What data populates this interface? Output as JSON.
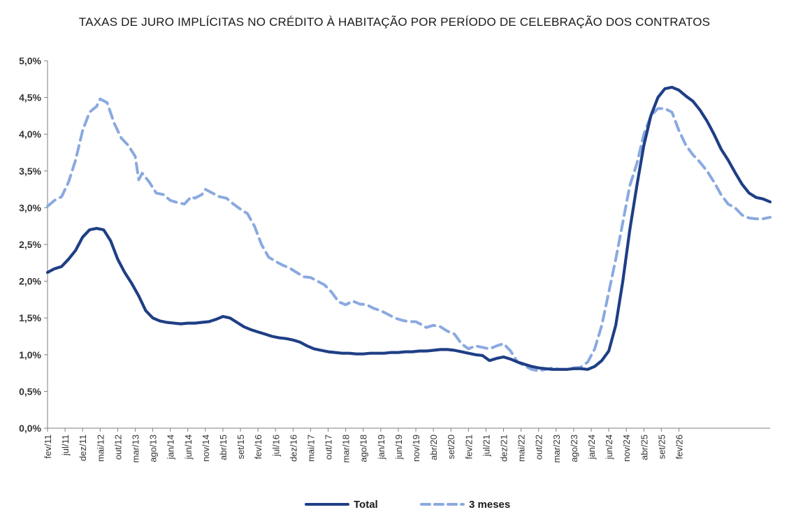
{
  "chart_data": {
    "type": "line",
    "title": "TAXAS DE JURO IMPLÍCITAS NO CRÉDITO À HABITAÇÃO POR PERÍODO DE CELEBRAÇÃO DOS CONTRATOS",
    "xlabel": "",
    "ylabel": "",
    "ylim": [
      0,
      5.0
    ],
    "yticks": [
      0,
      0.5,
      1.0,
      1.5,
      2.0,
      2.5,
      3.0,
      3.5,
      4.0,
      4.5,
      5.0
    ],
    "ytick_labels": [
      "0,0%",
      "0,5%",
      "1,0%",
      "1,5%",
      "2,0%",
      "2,5%",
      "3,0%",
      "3,5%",
      "4,0%",
      "4,5%",
      "5,0%"
    ],
    "x_tick_labels": [
      "fev/11",
      "jul/11",
      "dez/11",
      "mai/12",
      "out/12",
      "mar/13",
      "ago/13",
      "jan/14",
      "jun/14",
      "nov/14",
      "abr/15",
      "set/15",
      "fev/16",
      "jul/16",
      "dez/16",
      "mai/17",
      "out/17",
      "mar/18",
      "ago/18",
      "jan/19",
      "jun/19",
      "nov/19",
      "abr/20",
      "set/20",
      "fev/21",
      "jul/21",
      "dez/21",
      "mai/22",
      "out/22",
      "mar/23",
      "ago/23",
      "jan/24",
      "jun/24",
      "nov/24",
      "abr/25",
      "set/25",
      "fev/26"
    ],
    "x_tick_step_months": 5,
    "legend_position": "bottom-center",
    "series": [
      {
        "name": "Total",
        "color": "#1f3f85",
        "style": "solid",
        "points": [
          [
            0,
            2.12
          ],
          [
            2,
            2.17
          ],
          [
            4,
            2.2
          ],
          [
            6,
            2.3
          ],
          [
            8,
            2.42
          ],
          [
            10,
            2.6
          ],
          [
            12,
            2.7
          ],
          [
            14,
            2.72
          ],
          [
            16,
            2.7
          ],
          [
            18,
            2.55
          ],
          [
            20,
            2.3
          ],
          [
            22,
            2.12
          ],
          [
            24,
            1.97
          ],
          [
            26,
            1.8
          ],
          [
            28,
            1.6
          ],
          [
            30,
            1.5
          ],
          [
            32,
            1.46
          ],
          [
            34,
            1.44
          ],
          [
            36,
            1.43
          ],
          [
            38,
            1.42
          ],
          [
            40,
            1.43
          ],
          [
            42,
            1.43
          ],
          [
            44,
            1.44
          ],
          [
            46,
            1.45
          ],
          [
            48,
            1.48
          ],
          [
            50,
            1.52
          ],
          [
            52,
            1.5
          ],
          [
            54,
            1.44
          ],
          [
            56,
            1.38
          ],
          [
            58,
            1.34
          ],
          [
            60,
            1.31
          ],
          [
            62,
            1.28
          ],
          [
            64,
            1.25
          ],
          [
            66,
            1.23
          ],
          [
            68,
            1.22
          ],
          [
            70,
            1.2
          ],
          [
            72,
            1.17
          ],
          [
            74,
            1.12
          ],
          [
            76,
            1.08
          ],
          [
            78,
            1.06
          ],
          [
            80,
            1.04
          ],
          [
            82,
            1.03
          ],
          [
            84,
            1.02
          ],
          [
            86,
            1.02
          ],
          [
            88,
            1.01
          ],
          [
            90,
            1.01
          ],
          [
            92,
            1.02
          ],
          [
            94,
            1.02
          ],
          [
            96,
            1.02
          ],
          [
            98,
            1.03
          ],
          [
            100,
            1.03
          ],
          [
            102,
            1.04
          ],
          [
            104,
            1.04
          ],
          [
            106,
            1.05
          ],
          [
            108,
            1.05
          ],
          [
            110,
            1.06
          ],
          [
            112,
            1.07
          ],
          [
            114,
            1.07
          ],
          [
            116,
            1.06
          ],
          [
            118,
            1.04
          ],
          [
            120,
            1.02
          ],
          [
            122,
            1.0
          ],
          [
            124,
            0.99
          ],
          [
            126,
            0.92
          ],
          [
            128,
            0.95
          ],
          [
            130,
            0.97
          ],
          [
            132,
            0.94
          ],
          [
            134,
            0.9
          ],
          [
            136,
            0.87
          ],
          [
            138,
            0.84
          ],
          [
            140,
            0.82
          ],
          [
            142,
            0.81
          ],
          [
            144,
            0.8
          ],
          [
            146,
            0.8
          ],
          [
            148,
            0.8
          ],
          [
            150,
            0.81
          ],
          [
            152,
            0.81
          ],
          [
            154,
            0.8
          ],
          [
            156,
            0.84
          ],
          [
            158,
            0.92
          ],
          [
            160,
            1.05
          ],
          [
            162,
            1.4
          ],
          [
            164,
            2.0
          ],
          [
            166,
            2.7
          ],
          [
            168,
            3.3
          ],
          [
            170,
            3.85
          ],
          [
            172,
            4.25
          ],
          [
            174,
            4.5
          ],
          [
            176,
            4.62
          ],
          [
            178,
            4.64
          ],
          [
            180,
            4.6
          ],
          [
            182,
            4.52
          ],
          [
            184,
            4.45
          ],
          [
            186,
            4.33
          ],
          [
            188,
            4.18
          ],
          [
            190,
            4.0
          ],
          [
            192,
            3.8
          ],
          [
            194,
            3.65
          ],
          [
            196,
            3.48
          ],
          [
            198,
            3.32
          ],
          [
            200,
            3.2
          ],
          [
            202,
            3.14
          ],
          [
            204,
            3.12
          ],
          [
            206,
            3.08
          ]
        ]
      },
      {
        "name": "3 meses",
        "color": "#8aa9e0",
        "style": "dashed",
        "points": [
          [
            0,
            3.02
          ],
          [
            2,
            3.1
          ],
          [
            4,
            3.15
          ],
          [
            6,
            3.35
          ],
          [
            8,
            3.65
          ],
          [
            10,
            4.05
          ],
          [
            12,
            4.3
          ],
          [
            14,
            4.38
          ],
          [
            15,
            4.48
          ],
          [
            17,
            4.43
          ],
          [
            19,
            4.15
          ],
          [
            21,
            3.95
          ],
          [
            23,
            3.85
          ],
          [
            25,
            3.7
          ],
          [
            26,
            3.38
          ],
          [
            27,
            3.47
          ],
          [
            29,
            3.35
          ],
          [
            31,
            3.2
          ],
          [
            33,
            3.18
          ],
          [
            35,
            3.1
          ],
          [
            37,
            3.07
          ],
          [
            39,
            3.05
          ],
          [
            41,
            3.15
          ],
          [
            42,
            3.13
          ],
          [
            44,
            3.18
          ],
          [
            45,
            3.25
          ],
          [
            47,
            3.2
          ],
          [
            49,
            3.15
          ],
          [
            51,
            3.13
          ],
          [
            53,
            3.05
          ],
          [
            55,
            2.98
          ],
          [
            57,
            2.92
          ],
          [
            59,
            2.75
          ],
          [
            61,
            2.5
          ],
          [
            63,
            2.33
          ],
          [
            65,
            2.27
          ],
          [
            67,
            2.22
          ],
          [
            69,
            2.18
          ],
          [
            71,
            2.12
          ],
          [
            73,
            2.06
          ],
          [
            75,
            2.05
          ],
          [
            77,
            2.0
          ],
          [
            79,
            1.95
          ],
          [
            81,
            1.85
          ],
          [
            83,
            1.72
          ],
          [
            85,
            1.68
          ],
          [
            87,
            1.73
          ],
          [
            89,
            1.69
          ],
          [
            91,
            1.68
          ],
          [
            93,
            1.63
          ],
          [
            95,
            1.6
          ],
          [
            97,
            1.55
          ],
          [
            99,
            1.5
          ],
          [
            101,
            1.47
          ],
          [
            103,
            1.45
          ],
          [
            105,
            1.45
          ],
          [
            107,
            1.4
          ],
          [
            108,
            1.37
          ],
          [
            110,
            1.4
          ],
          [
            112,
            1.38
          ],
          [
            114,
            1.32
          ],
          [
            116,
            1.28
          ],
          [
            118,
            1.15
          ],
          [
            120,
            1.08
          ],
          [
            122,
            1.12
          ],
          [
            124,
            1.1
          ],
          [
            126,
            1.08
          ],
          [
            128,
            1.12
          ],
          [
            130,
            1.15
          ],
          [
            132,
            1.05
          ],
          [
            134,
            0.9
          ],
          [
            136,
            0.85
          ],
          [
            138,
            0.8
          ],
          [
            140,
            0.78
          ],
          [
            142,
            0.8
          ],
          [
            144,
            0.82
          ],
          [
            146,
            0.8
          ],
          [
            148,
            0.8
          ],
          [
            150,
            0.82
          ],
          [
            152,
            0.83
          ],
          [
            154,
            0.9
          ],
          [
            156,
            1.08
          ],
          [
            158,
            1.4
          ],
          [
            160,
            1.85
          ],
          [
            162,
            2.3
          ],
          [
            164,
            2.8
          ],
          [
            166,
            3.3
          ],
          [
            168,
            3.6
          ],
          [
            170,
            4.0
          ],
          [
            172,
            4.25
          ],
          [
            174,
            4.35
          ],
          [
            176,
            4.35
          ],
          [
            178,
            4.3
          ],
          [
            180,
            4.05
          ],
          [
            182,
            3.85
          ],
          [
            184,
            3.72
          ],
          [
            186,
            3.62
          ],
          [
            188,
            3.5
          ],
          [
            190,
            3.35
          ],
          [
            192,
            3.18
          ],
          [
            194,
            3.05
          ],
          [
            196,
            3.0
          ],
          [
            198,
            2.9
          ],
          [
            200,
            2.86
          ],
          [
            202,
            2.85
          ],
          [
            204,
            2.85
          ],
          [
            206,
            2.87
          ]
        ]
      }
    ]
  }
}
